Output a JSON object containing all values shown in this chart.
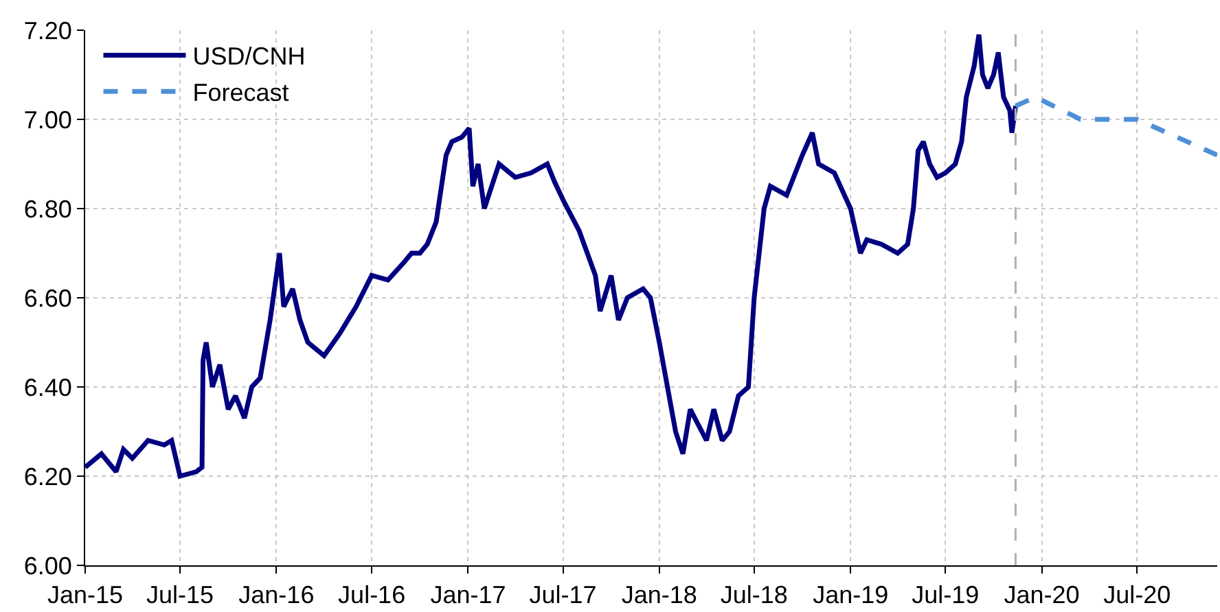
{
  "chart_data": {
    "type": "line",
    "series": [
      {
        "name": "USD/CNH",
        "color": "#000080",
        "line_style": "solid",
        "x": [
          "2015-01-01",
          "2015-02-01",
          "2015-03-01",
          "2015-03-15",
          "2015-04-01",
          "2015-05-01",
          "2015-06-01",
          "2015-06-15",
          "2015-07-01",
          "2015-08-01",
          "2015-08-12",
          "2015-08-14",
          "2015-08-20",
          "2015-09-01",
          "2015-09-15",
          "2015-10-01",
          "2015-10-15",
          "2015-11-01",
          "2015-11-15",
          "2015-12-01",
          "2015-12-20",
          "2016-01-07",
          "2016-01-15",
          "2016-02-01",
          "2016-02-15",
          "2016-03-01",
          "2016-04-01",
          "2016-05-01",
          "2016-06-01",
          "2016-07-01",
          "2016-08-01",
          "2016-09-01",
          "2016-09-15",
          "2016-10-01",
          "2016-10-15",
          "2016-11-01",
          "2016-11-20",
          "2016-12-01",
          "2016-12-20",
          "2017-01-03",
          "2017-01-10",
          "2017-01-20",
          "2017-02-01",
          "2017-03-01",
          "2017-04-01",
          "2017-05-01",
          "2017-06-01",
          "2017-06-15",
          "2017-07-01",
          "2017-08-01",
          "2017-09-01",
          "2017-09-10",
          "2017-10-01",
          "2017-10-15",
          "2017-11-01",
          "2017-12-01",
          "2017-12-15",
          "2018-01-01",
          "2018-02-01",
          "2018-02-15",
          "2018-03-01",
          "2018-04-01",
          "2018-04-15",
          "2018-05-01",
          "2018-05-15",
          "2018-06-01",
          "2018-06-20",
          "2018-07-01",
          "2018-07-20",
          "2018-08-01",
          "2018-09-01",
          "2018-10-01",
          "2018-10-20",
          "2018-11-01",
          "2018-12-01",
          "2019-01-01",
          "2019-01-20",
          "2019-02-01",
          "2019-03-01",
          "2019-04-01",
          "2019-04-20",
          "2019-05-01",
          "2019-05-10",
          "2019-05-20",
          "2019-06-01",
          "2019-06-15",
          "2019-07-01",
          "2019-07-20",
          "2019-08-01",
          "2019-08-10",
          "2019-08-25",
          "2019-09-03",
          "2019-09-10",
          "2019-09-20",
          "2019-10-01",
          "2019-10-10",
          "2019-10-20",
          "2019-11-01",
          "2019-11-05",
          "2019-11-12"
        ],
        "values": [
          6.22,
          6.25,
          6.21,
          6.26,
          6.24,
          6.28,
          6.27,
          6.28,
          6.2,
          6.21,
          6.22,
          6.46,
          6.5,
          6.4,
          6.45,
          6.35,
          6.38,
          6.33,
          6.4,
          6.42,
          6.55,
          6.7,
          6.58,
          6.62,
          6.55,
          6.5,
          6.47,
          6.52,
          6.58,
          6.65,
          6.64,
          6.68,
          6.7,
          6.7,
          6.72,
          6.77,
          6.92,
          6.95,
          6.96,
          6.98,
          6.85,
          6.9,
          6.8,
          6.9,
          6.87,
          6.88,
          6.9,
          6.86,
          6.82,
          6.75,
          6.65,
          6.57,
          6.65,
          6.55,
          6.6,
          6.62,
          6.6,
          6.5,
          6.3,
          6.25,
          6.35,
          6.28,
          6.35,
          6.28,
          6.3,
          6.38,
          6.4,
          6.6,
          6.8,
          6.85,
          6.83,
          6.92,
          6.97,
          6.9,
          6.88,
          6.8,
          6.7,
          6.73,
          6.72,
          6.7,
          6.72,
          6.8,
          6.93,
          6.95,
          6.9,
          6.87,
          6.88,
          6.9,
          6.95,
          7.05,
          7.12,
          7.19,
          7.1,
          7.07,
          7.1,
          7.15,
          7.05,
          7.02,
          6.97,
          7.03
        ]
      },
      {
        "name": "Forecast",
        "color": "#4f8fd8",
        "line_style": "dashed",
        "x": [
          "2019-11-12",
          "2019-12-20",
          "2020-03-15",
          "2020-07-01",
          "2020-12-01"
        ],
        "values": [
          7.03,
          7.05,
          7.0,
          7.0,
          6.92
        ]
      }
    ],
    "xlim": [
      "2015-01-01",
      "2020-12-01"
    ],
    "xticks": [
      {
        "value": "2015-01-01",
        "label": "Jan-15"
      },
      {
        "value": "2015-07-01",
        "label": "Jul-15"
      },
      {
        "value": "2016-01-01",
        "label": "Jan-16"
      },
      {
        "value": "2016-07-01",
        "label": "Jul-16"
      },
      {
        "value": "2017-01-01",
        "label": "Jan-17"
      },
      {
        "value": "2017-07-01",
        "label": "Jul-17"
      },
      {
        "value": "2018-01-01",
        "label": "Jan-18"
      },
      {
        "value": "2018-07-01",
        "label": "Jul-18"
      },
      {
        "value": "2019-01-01",
        "label": "Jan-19"
      },
      {
        "value": "2019-07-01",
        "label": "Jul-19"
      },
      {
        "value": "2020-01-01",
        "label": "Jan-20"
      },
      {
        "value": "2020-07-01",
        "label": "Jul-20"
      }
    ],
    "ylim": [
      6.0,
      7.2
    ],
    "yticks": [
      {
        "value": 6.0,
        "label": "6.00"
      },
      {
        "value": 6.2,
        "label": "6.20"
      },
      {
        "value": 6.4,
        "label": "6.40"
      },
      {
        "value": 6.6,
        "label": "6.60"
      },
      {
        "value": 6.8,
        "label": "6.80"
      },
      {
        "value": 7.0,
        "label": "7.00"
      },
      {
        "value": 7.2,
        "label": "7.20"
      }
    ],
    "ref_lines": [
      {
        "axis": "x",
        "value": "2019-11-12",
        "label": null,
        "color": "#b0b0b0",
        "line_style": "dashed"
      }
    ],
    "grid": true,
    "legend": "top left",
    "marker": "none"
  }
}
